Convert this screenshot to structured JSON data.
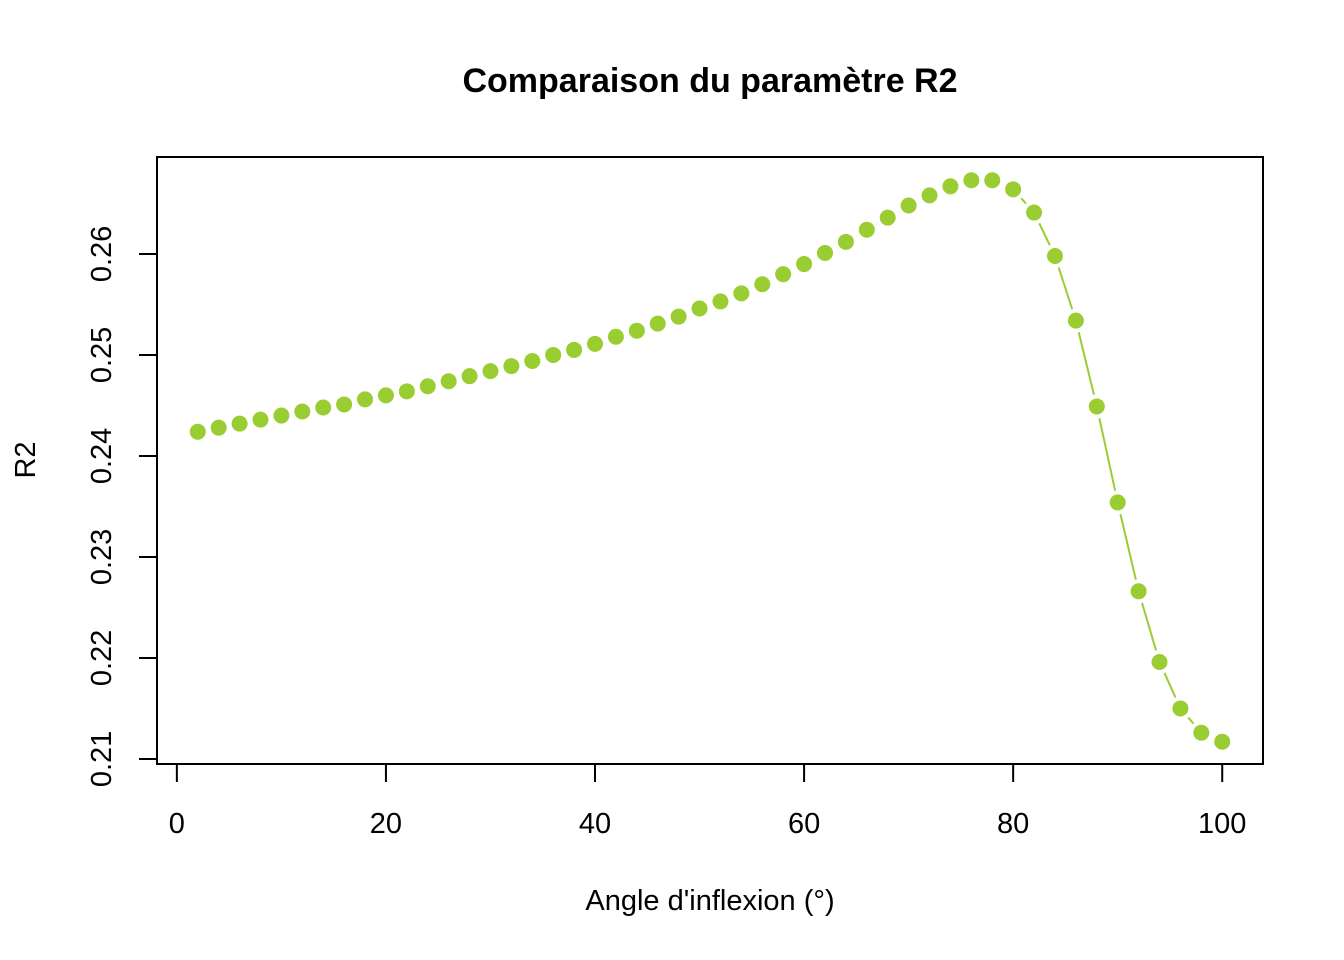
{
  "chart_data": {
    "type": "scatter",
    "title": "Comparaison du paramètre R2",
    "xlabel": "Angle d'inflexion (°)",
    "ylabel": "R2",
    "xlim": [
      -1.9,
      103.9
    ],
    "ylim": [
      0.2095,
      0.2696
    ],
    "x_ticks": [
      0,
      20,
      40,
      60,
      80,
      100
    ],
    "x_tick_labels": [
      "0",
      "20",
      "40",
      "60",
      "80",
      "100"
    ],
    "y_ticks": [
      0.21,
      0.22,
      0.23,
      0.24,
      0.25,
      0.26
    ],
    "y_tick_labels": [
      "0.21",
      "0.22",
      "0.23",
      "0.24",
      "0.25",
      "0.26"
    ],
    "grid": false,
    "color": "#9ACD32",
    "series": [
      {
        "name": "R2",
        "x": [
          2,
          4,
          6,
          8,
          10,
          12,
          14,
          16,
          18,
          20,
          22,
          24,
          26,
          28,
          30,
          32,
          34,
          36,
          38,
          40,
          42,
          44,
          46,
          48,
          50,
          52,
          54,
          56,
          58,
          60,
          62,
          64,
          66,
          68,
          70,
          72,
          74,
          76,
          78,
          80,
          82,
          84,
          86,
          88,
          90,
          92,
          94,
          96,
          98,
          100
        ],
        "y": [
          0.2424,
          0.2428,
          0.2432,
          0.2436,
          0.244,
          0.2444,
          0.2448,
          0.2451,
          0.2456,
          0.246,
          0.2464,
          0.2469,
          0.2474,
          0.2479,
          0.2484,
          0.2489,
          0.2494,
          0.25,
          0.2505,
          0.2511,
          0.2518,
          0.2524,
          0.2531,
          0.2538,
          0.2546,
          0.2553,
          0.2561,
          0.257,
          0.258,
          0.259,
          0.2601,
          0.2612,
          0.2624,
          0.2636,
          0.2648,
          0.2658,
          0.2667,
          0.2673,
          0.2673,
          0.2664,
          0.2641,
          0.2598,
          0.2534,
          0.2449,
          0.2354,
          0.2266,
          0.2196,
          0.215,
          0.2126,
          0.2117
        ]
      }
    ]
  }
}
